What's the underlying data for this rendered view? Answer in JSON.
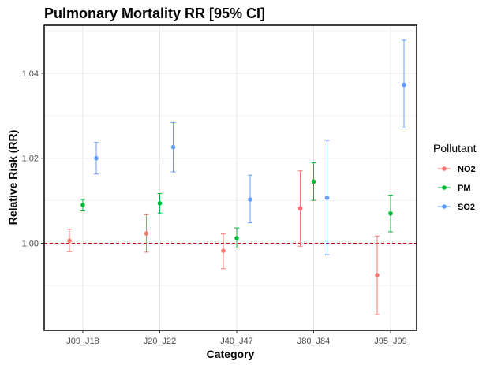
{
  "chart_data": {
    "type": "scatter",
    "title": "Pulmonary Mortality RR [95% CI]",
    "xlabel": "Category",
    "ylabel": "Relative Risk (RR)",
    "categories": [
      "J09_J18",
      "J20_J22",
      "J40_J47",
      "J80_J84",
      "J95_J99"
    ],
    "y_ticks": [
      1.0,
      1.02,
      1.04
    ],
    "y_tick_labels": [
      "1.00",
      "1.02",
      "1.04"
    ],
    "ylim": [
      0.9795,
      1.0513
    ],
    "grid": true,
    "legend_title": "Pollutant",
    "legend_position": "right",
    "reference_line": 1.0,
    "reference_color": "#cc0000",
    "series": [
      {
        "name": "NO2",
        "color": "#f8766d",
        "points": [
          {
            "category": "J09_J18",
            "rr": 1.0006,
            "lower": 0.998,
            "upper": 1.0033
          },
          {
            "category": "J20_J22",
            "rr": 1.0023,
            "lower": 0.9979,
            "upper": 1.0067
          },
          {
            "category": "J40_J47",
            "rr": 0.9982,
            "lower": 0.994,
            "upper": 1.0022
          },
          {
            "category": "J80_J84",
            "rr": 1.0082,
            "lower": 0.9993,
            "upper": 1.017
          },
          {
            "category": "J95_J99",
            "rr": 0.9925,
            "lower": 0.9832,
            "upper": 1.0017
          }
        ]
      },
      {
        "name": "PM",
        "color": "#00ba38",
        "points": [
          {
            "category": "J09_J18",
            "rr": 1.009,
            "lower": 1.0076,
            "upper": 1.0103
          },
          {
            "category": "J20_J22",
            "rr": 1.0094,
            "lower": 1.0071,
            "upper": 1.0117
          },
          {
            "category": "J40_J47",
            "rr": 1.0012,
            "lower": 0.9989,
            "upper": 1.0036
          },
          {
            "category": "J80_J84",
            "rr": 1.0145,
            "lower": 1.0101,
            "upper": 1.0189
          },
          {
            "category": "J95_J99",
            "rr": 1.007,
            "lower": 1.0027,
            "upper": 1.0113
          }
        ]
      },
      {
        "name": "SO2",
        "color": "#619cff",
        "points": [
          {
            "category": "J09_J18",
            "rr": 1.02,
            "lower": 1.0163,
            "upper": 1.0237
          },
          {
            "category": "J20_J22",
            "rr": 1.0226,
            "lower": 1.0168,
            "upper": 1.0284
          },
          {
            "category": "J40_J47",
            "rr": 1.0103,
            "lower": 1.0048,
            "upper": 1.016
          },
          {
            "category": "J80_J84",
            "rr": 1.0107,
            "lower": 0.9973,
            "upper": 1.0242
          },
          {
            "category": "J95_J99",
            "rr": 1.0373,
            "lower": 1.0271,
            "upper": 1.0478
          }
        ]
      }
    ]
  }
}
